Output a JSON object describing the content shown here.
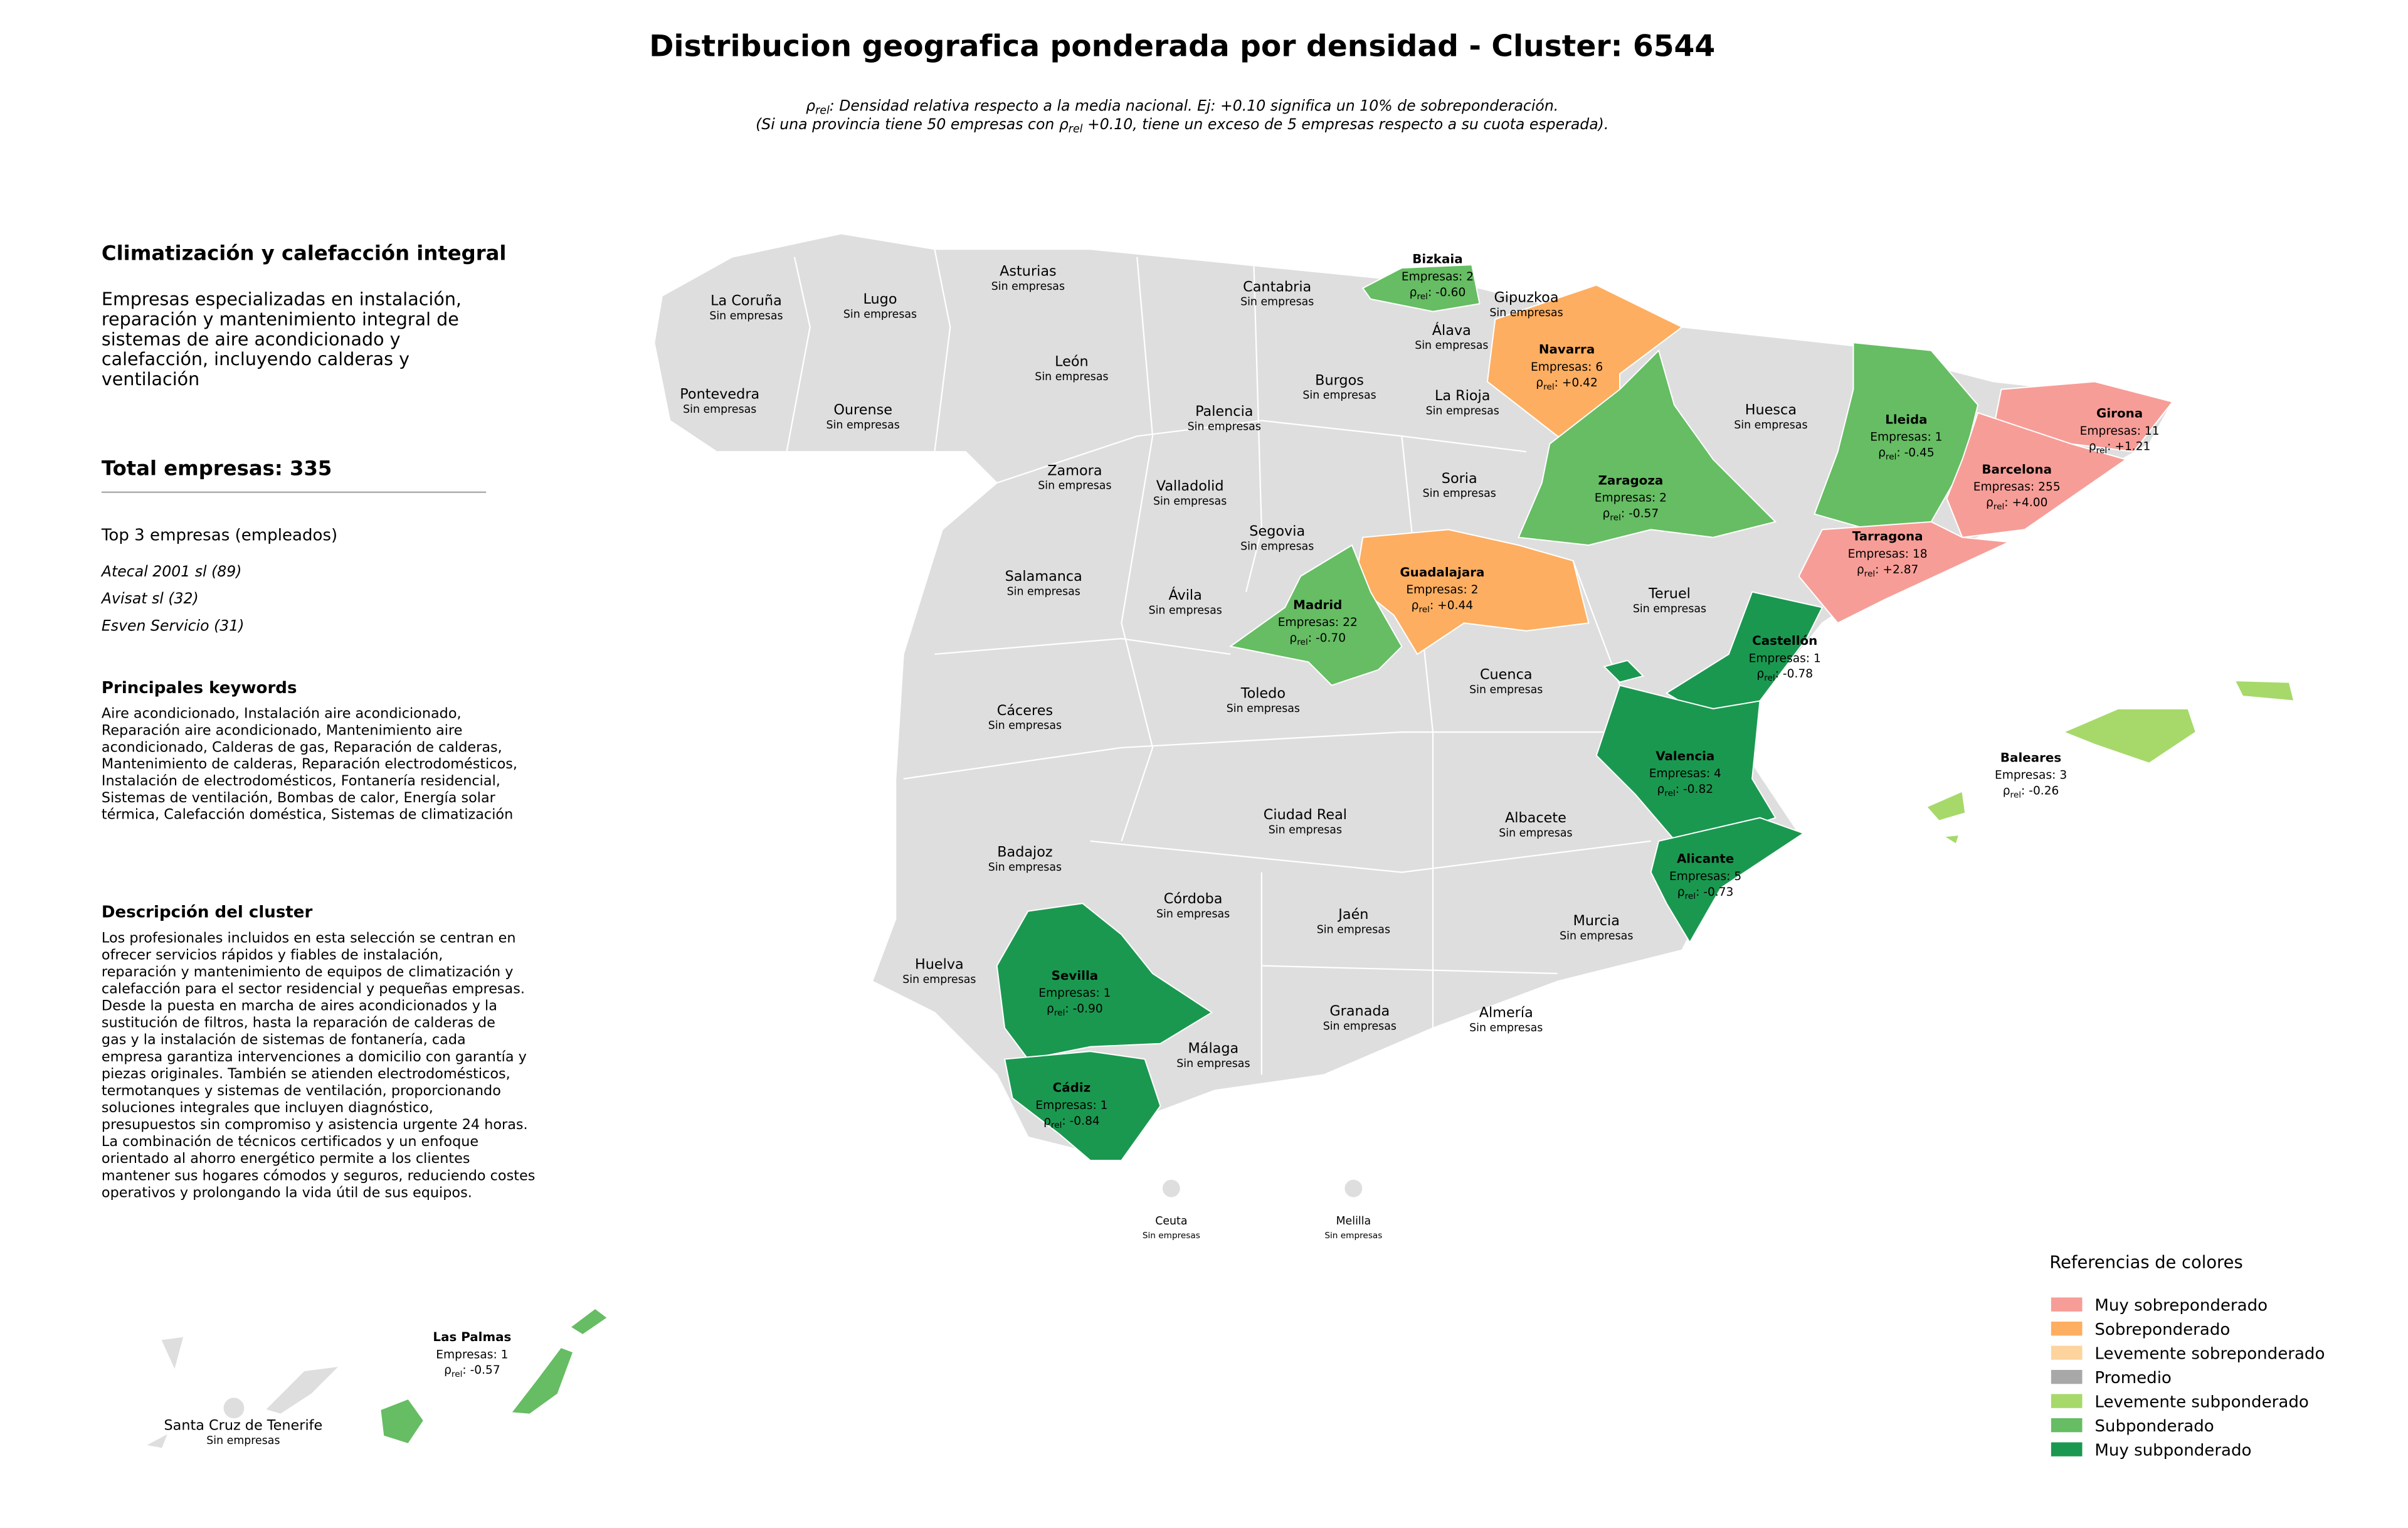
{
  "header": {
    "title": "Distribucion geografica ponderada por densidad - Cluster: 6544",
    "note_line1": {
      "symbol": "ρ",
      "sub": "rel",
      "text": ": Densidad relativa respecto a la media nacional. Ej: +0.10 significa un 10% de sobreponderación."
    },
    "note_line2": {
      "before": "(Si una provincia tiene 50 empresas con ",
      "symbol": "ρ",
      "sub": "rel",
      "after": " +0.10, tiene un exceso de 5 empresas respecto a su cuota esperada)."
    }
  },
  "panel": {
    "heading": "Climatización y calefacción integral",
    "summary": [
      "Empresas especializadas en instalación,",
      "reparación y mantenimiento integral de",
      "sistemas de aire acondicionado y",
      "calefacción, incluyendo calderas y",
      "ventilación"
    ],
    "total": "Total empresas: 335",
    "top_title": "Top 3 empresas (empleados)",
    "top": [
      "Atecal 2001 sl (89)",
      "Avisat sl (32)",
      "Esven Servicio (31)"
    ],
    "keywords_title": "Principales keywords",
    "keywords": [
      "Aire acondicionado, Instalación aire acondicionado,",
      "Reparación aire acondicionado, Mantenimiento aire",
      "acondicionado, Calderas de gas, Reparación de calderas,",
      "Mantenimiento de calderas, Reparación electrodomésticos,",
      "Instalación de electrodomésticos, Fontanería residencial,",
      "Sistemas de ventilación, Bombas de calor, Energía solar",
      "térmica, Calefacción doméstica, Sistemas de climatización"
    ],
    "description_title": "Descripción del cluster",
    "description": [
      "Los profesionales incluidos en esta selección se centran en",
      "ofrecer servicios rápidos y fiables de instalación,",
      "reparación y mantenimiento de equipos de climatización y",
      "calefacción para el sector residencial y pequeñas empresas.",
      "Desde la puesta en marcha de aires acondicionados y la",
      "sustitución de filtros, hasta la reparación de calderas de",
      "gas y la instalación de sistemas de fontanería, cada",
      "empresa garantiza intervenciones a domicilio con garantía y",
      "piezas originales. También se atienden electrodomésticos,",
      "termotanques y sistemas de ventilación, proporcionando",
      "soluciones integrales que incluyen diagnóstico,",
      "presupuestos sin compromiso y asistencia urgente 24 horas.",
      "La combinación de técnicos certificados y un enfoque",
      "orientado al ahorro energético permite a los clientes",
      "mantener sus hogares cómodos y seguros, reduciendo costes",
      "operativos y prolongando la vida útil de sus equipos."
    ]
  },
  "map": {
    "rho_label": {
      "symbol": "ρ",
      "sub": "rel",
      "sep": ": "
    },
    "provinces": [
      {
        "name": "Bizkaia",
        "companies": "Empresas: 2",
        "rho": "-0.60",
        "color": "#66bd63"
      },
      {
        "name": "Navarra",
        "companies": "Empresas: 6",
        "rho": "+0.42",
        "color": "#fdae61"
      },
      {
        "name": "Lleida",
        "companies": "Empresas: 1",
        "rho": "-0.45",
        "color": "#66bd63"
      },
      {
        "name": "Girona",
        "companies": "Empresas: 11",
        "rho": "+1.21",
        "color": "#f79d97"
      },
      {
        "name": "Barcelona",
        "companies": "Empresas: 255",
        "rho": "+4.00",
        "color": "#f79d97"
      },
      {
        "name": "Zaragoza",
        "companies": "Empresas: 2",
        "rho": "-0.57",
        "color": "#66bd63"
      },
      {
        "name": "Tarragona",
        "companies": "Empresas: 18",
        "rho": "+2.87",
        "color": "#f79d97"
      },
      {
        "name": "Guadalajara",
        "companies": "Empresas: 2",
        "rho": "+0.44",
        "color": "#fdae61"
      },
      {
        "name": "Madrid",
        "companies": "Empresas: 22",
        "rho": "-0.70",
        "color": "#66bd63"
      },
      {
        "name": "Castellón",
        "companies": "Empresas: 1",
        "rho": "-0.78",
        "color": "#1a9850"
      },
      {
        "name": "Valencia",
        "companies": "Empresas: 4",
        "rho": "-0.82",
        "color": "#1a9850"
      },
      {
        "name": "Baleares",
        "companies": "Empresas: 3",
        "rho": "-0.26",
        "color": "#a6d96a"
      },
      {
        "name": "Alicante",
        "companies": "Empresas: 5",
        "rho": "-0.73",
        "color": "#1a9850"
      },
      {
        "name": "Sevilla",
        "companies": "Empresas: 1",
        "rho": "-0.90",
        "color": "#1a9850"
      },
      {
        "name": "Cádiz",
        "companies": "Empresas: 1",
        "rho": "-0.84",
        "color": "#1a9850"
      },
      {
        "name": "Las Palmas",
        "companies": "Empresas: 1",
        "rho": "-0.57",
        "color": "#66bd63"
      }
    ],
    "empty_color": "#dedede",
    "empty_provinces": [
      {
        "name": "La Coruña",
        "note": "Sin empresas"
      },
      {
        "name": "Lugo",
        "note": "Sin empresas"
      },
      {
        "name": "Asturias",
        "note": "Sin empresas"
      },
      {
        "name": "Cantabria",
        "note": "Sin empresas"
      },
      {
        "name": "Gipuzkoa",
        "note": "Sin empresas"
      },
      {
        "name": "Álava",
        "note": "Sin empresas"
      },
      {
        "name": "Pontevedra",
        "note": "Sin empresas"
      },
      {
        "name": "Ourense",
        "note": "Sin empresas"
      },
      {
        "name": "León",
        "note": "Sin empresas"
      },
      {
        "name": "Palencia",
        "note": "Sin empresas"
      },
      {
        "name": "Burgos",
        "note": "Sin empresas"
      },
      {
        "name": "La Rioja",
        "note": "Sin empresas"
      },
      {
        "name": "Huesca",
        "note": "Sin empresas"
      },
      {
        "name": "Zamora",
        "note": "Sin empresas"
      },
      {
        "name": "Valladolid",
        "note": "Sin empresas"
      },
      {
        "name": "Soria",
        "note": "Sin empresas"
      },
      {
        "name": "Segovia",
        "note": "Sin empresas"
      },
      {
        "name": "Salamanca",
        "note": "Sin empresas"
      },
      {
        "name": "Ávila",
        "note": "Sin empresas"
      },
      {
        "name": "Teruel",
        "note": "Sin empresas"
      },
      {
        "name": "Cáceres",
        "note": "Sin empresas"
      },
      {
        "name": "Toledo",
        "note": "Sin empresas"
      },
      {
        "name": "Cuenca",
        "note": "Sin empresas"
      },
      {
        "name": "Ciudad Real",
        "note": "Sin empresas"
      },
      {
        "name": "Albacete",
        "note": "Sin empresas"
      },
      {
        "name": "Badajoz",
        "note": "Sin empresas"
      },
      {
        "name": "Córdoba",
        "note": "Sin empresas"
      },
      {
        "name": "Jaén",
        "note": "Sin empresas"
      },
      {
        "name": "Murcia",
        "note": "Sin empresas"
      },
      {
        "name": "Huelva",
        "note": "Sin empresas"
      },
      {
        "name": "Granada",
        "note": "Sin empresas"
      },
      {
        "name": "Almería",
        "note": "Sin empresas"
      },
      {
        "name": "Málaga",
        "note": "Sin empresas"
      },
      {
        "name": "Ceuta",
        "note": "Sin empresas"
      },
      {
        "name": "Melilla",
        "note": "Sin empresas"
      },
      {
        "name": "Santa Cruz de Tenerife",
        "note": "Sin empresas"
      }
    ]
  },
  "legend": {
    "title": "Referencias de colores",
    "items": [
      {
        "label": "Muy sobreponderado",
        "color": "#f79d97"
      },
      {
        "label": "Sobreponderado",
        "color": "#fdae61"
      },
      {
        "label": "Levemente sobreponderado",
        "color": "#fdd49e"
      },
      {
        "label": "Promedio",
        "color": "#a8a8a8"
      },
      {
        "label": "Levemente subponderado",
        "color": "#a6d96a"
      },
      {
        "label": "Subponderado",
        "color": "#66bd63"
      },
      {
        "label": "Muy subponderado",
        "color": "#1a9850"
      }
    ]
  }
}
